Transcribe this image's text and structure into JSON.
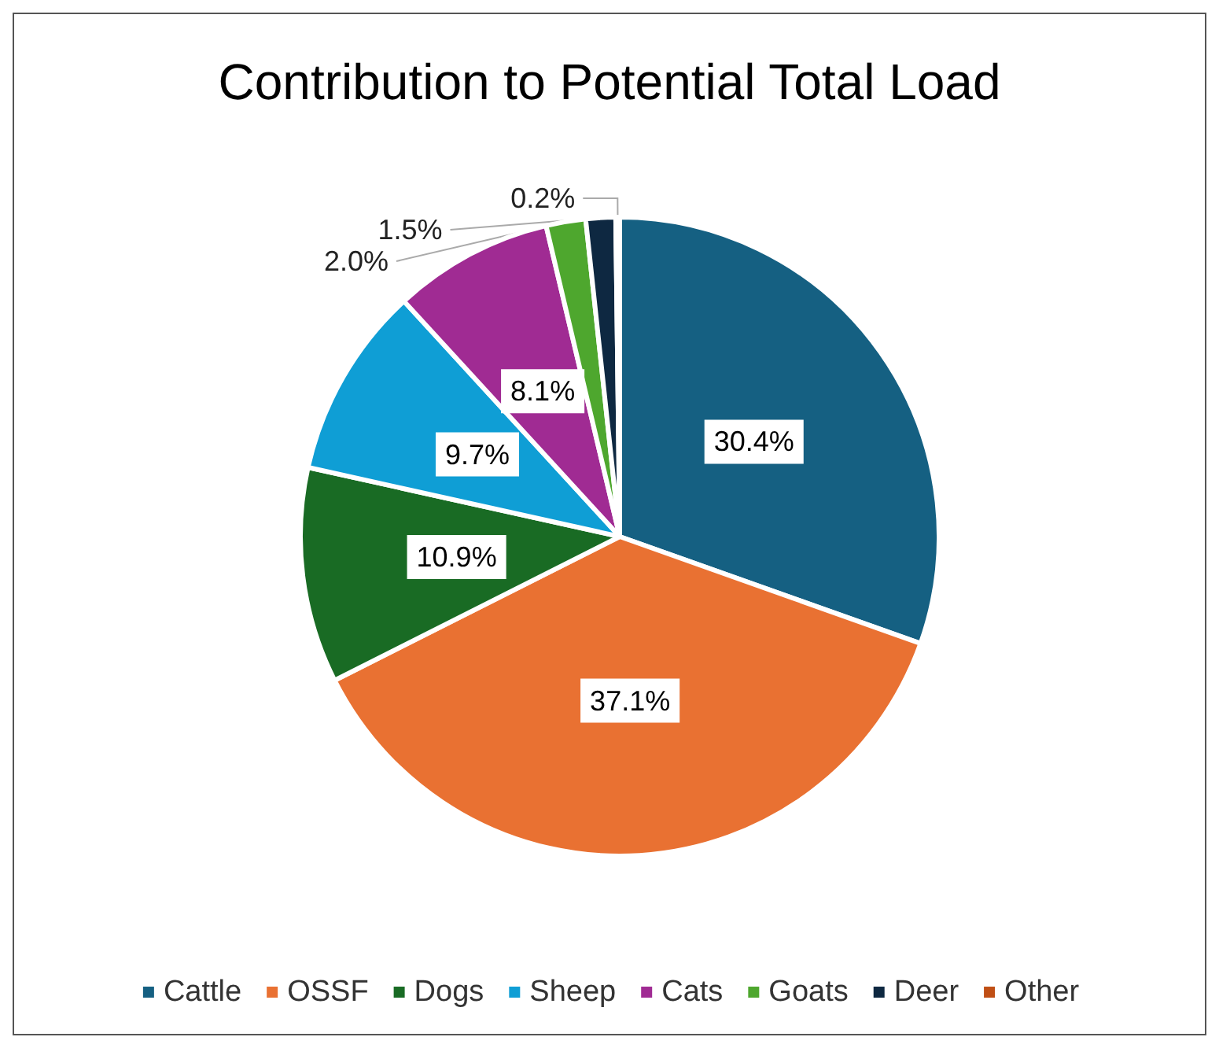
{
  "chart_data": {
    "type": "pie",
    "title": "Contribution to Potential Total Load",
    "categories": [
      "Cattle",
      "OSSF",
      "Dogs",
      "Sheep",
      "Cats",
      "Goats",
      "Deer",
      "Other"
    ],
    "values": [
      30.4,
      37.1,
      10.9,
      9.7,
      8.1,
      2.0,
      1.5,
      0.2
    ],
    "value_labels": [
      "30.4%",
      "37.1%",
      "10.9%",
      "9.7%",
      "8.1%",
      "2.0%",
      "1.5%",
      "0.2%"
    ],
    "colors": [
      "#156082",
      "#e97132",
      "#196b24",
      "#0f9ed5",
      "#a02b93",
      "#4ea72e",
      "#0e2841",
      "#c04f15"
    ],
    "legend": "bottom"
  }
}
